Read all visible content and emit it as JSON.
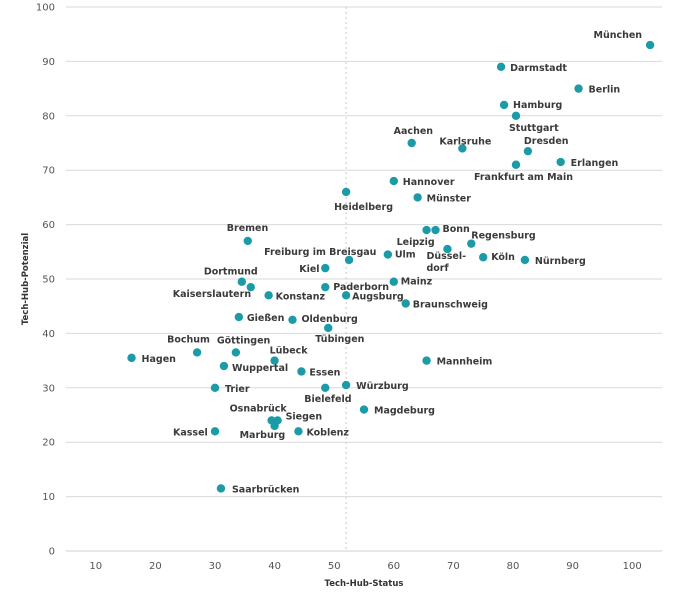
{
  "chart_data": {
    "type": "scatter",
    "xlabel": "Tech-Hub-Status",
    "ylabel": "Tech-Hub-Potenzial",
    "xlim": [
      5,
      105
    ],
    "ylim": [
      0,
      100
    ],
    "xticks": [
      10,
      20,
      30,
      40,
      50,
      60,
      70,
      80,
      90,
      100
    ],
    "yticks": [
      0,
      10,
      20,
      30,
      40,
      50,
      60,
      70,
      80,
      90,
      100
    ],
    "grid": "horizontal",
    "reference_line_x": 52,
    "marker_color": "#1a9ba6",
    "points": [
      {
        "label": "München",
        "x": 103,
        "y": 93
      },
      {
        "label": "Darmstadt",
        "x": 78,
        "y": 89
      },
      {
        "label": "Berlin",
        "x": 91,
        "y": 85
      },
      {
        "label": "Hamburg",
        "x": 78.5,
        "y": 82
      },
      {
        "label": "Stuttgart",
        "x": 80.5,
        "y": 80
      },
      {
        "label": "Aachen",
        "x": 63,
        "y": 75
      },
      {
        "label": "Karlsruhe",
        "x": 71.5,
        "y": 74
      },
      {
        "label": "Dresden",
        "x": 82.5,
        "y": 73.5
      },
      {
        "label": "Erlangen",
        "x": 88,
        "y": 71.5
      },
      {
        "label": "Frankfurt am Main",
        "x": 80.5,
        "y": 71
      },
      {
        "label": "Hannover",
        "x": 60,
        "y": 68
      },
      {
        "label": "Heidelberg",
        "x": 52,
        "y": 66
      },
      {
        "label": "Münster",
        "x": 64,
        "y": 65
      },
      {
        "label": "Bremen",
        "x": 35.5,
        "y": 57
      },
      {
        "label": "Bonn",
        "x": 67,
        "y": 59
      },
      {
        "label": "Leipzig",
        "x": 65.5,
        "y": 59
      },
      {
        "label": "Regensburg",
        "x": 73,
        "y": 56.5
      },
      {
        "label": "Düsseldorf",
        "x": 69,
        "y": 55.5
      },
      {
        "label": "Ulm",
        "x": 59,
        "y": 54.5
      },
      {
        "label": "Köln",
        "x": 75,
        "y": 54
      },
      {
        "label": "Nürnberg",
        "x": 82,
        "y": 53.5
      },
      {
        "label": "Freiburg im Breisgau",
        "x": 52.5,
        "y": 53.5
      },
      {
        "label": "Kiel",
        "x": 48.5,
        "y": 52
      },
      {
        "label": "Dortmund",
        "x": 34.5,
        "y": 49.5
      },
      {
        "label": "Kaiserslautern",
        "x": 36,
        "y": 48.5
      },
      {
        "label": "Paderborn",
        "x": 48.5,
        "y": 48.5
      },
      {
        "label": "Mainz",
        "x": 60,
        "y": 49.5
      },
      {
        "label": "Konstanz",
        "x": 39,
        "y": 47
      },
      {
        "label": "Augsburg",
        "x": 52,
        "y": 47
      },
      {
        "label": "Braunschweig",
        "x": 62,
        "y": 45.5
      },
      {
        "label": "Gießen",
        "x": 34,
        "y": 43
      },
      {
        "label": "Oldenburg",
        "x": 43,
        "y": 42.5
      },
      {
        "label": "Tübingen",
        "x": 49,
        "y": 41
      },
      {
        "label": "Bochum",
        "x": 27,
        "y": 36.5
      },
      {
        "label": "Göttingen",
        "x": 33.5,
        "y": 36.5
      },
      {
        "label": "Lübeck",
        "x": 40,
        "y": 35
      },
      {
        "label": "Hagen",
        "x": 16,
        "y": 35.5
      },
      {
        "label": "Mannheim",
        "x": 65.5,
        "y": 35
      },
      {
        "label": "Wuppertal",
        "x": 31.5,
        "y": 34
      },
      {
        "label": "Essen",
        "x": 44.5,
        "y": 33
      },
      {
        "label": "Trier",
        "x": 30,
        "y": 30
      },
      {
        "label": "Bielefeld",
        "x": 48.5,
        "y": 30
      },
      {
        "label": "Würzburg",
        "x": 52,
        "y": 30.5
      },
      {
        "label": "Magdeburg",
        "x": 55,
        "y": 26
      },
      {
        "label": "Osnabrück",
        "x": 39.5,
        "y": 24
      },
      {
        "label": "Siegen",
        "x": 40.5,
        "y": 24
      },
      {
        "label": "Marburg",
        "x": 40,
        "y": 23
      },
      {
        "label": "Kassel",
        "x": 30,
        "y": 22
      },
      {
        "label": "Koblenz",
        "x": 44,
        "y": 22
      },
      {
        "label": "Saarbrücken",
        "x": 31,
        "y": 11.5
      }
    ]
  }
}
